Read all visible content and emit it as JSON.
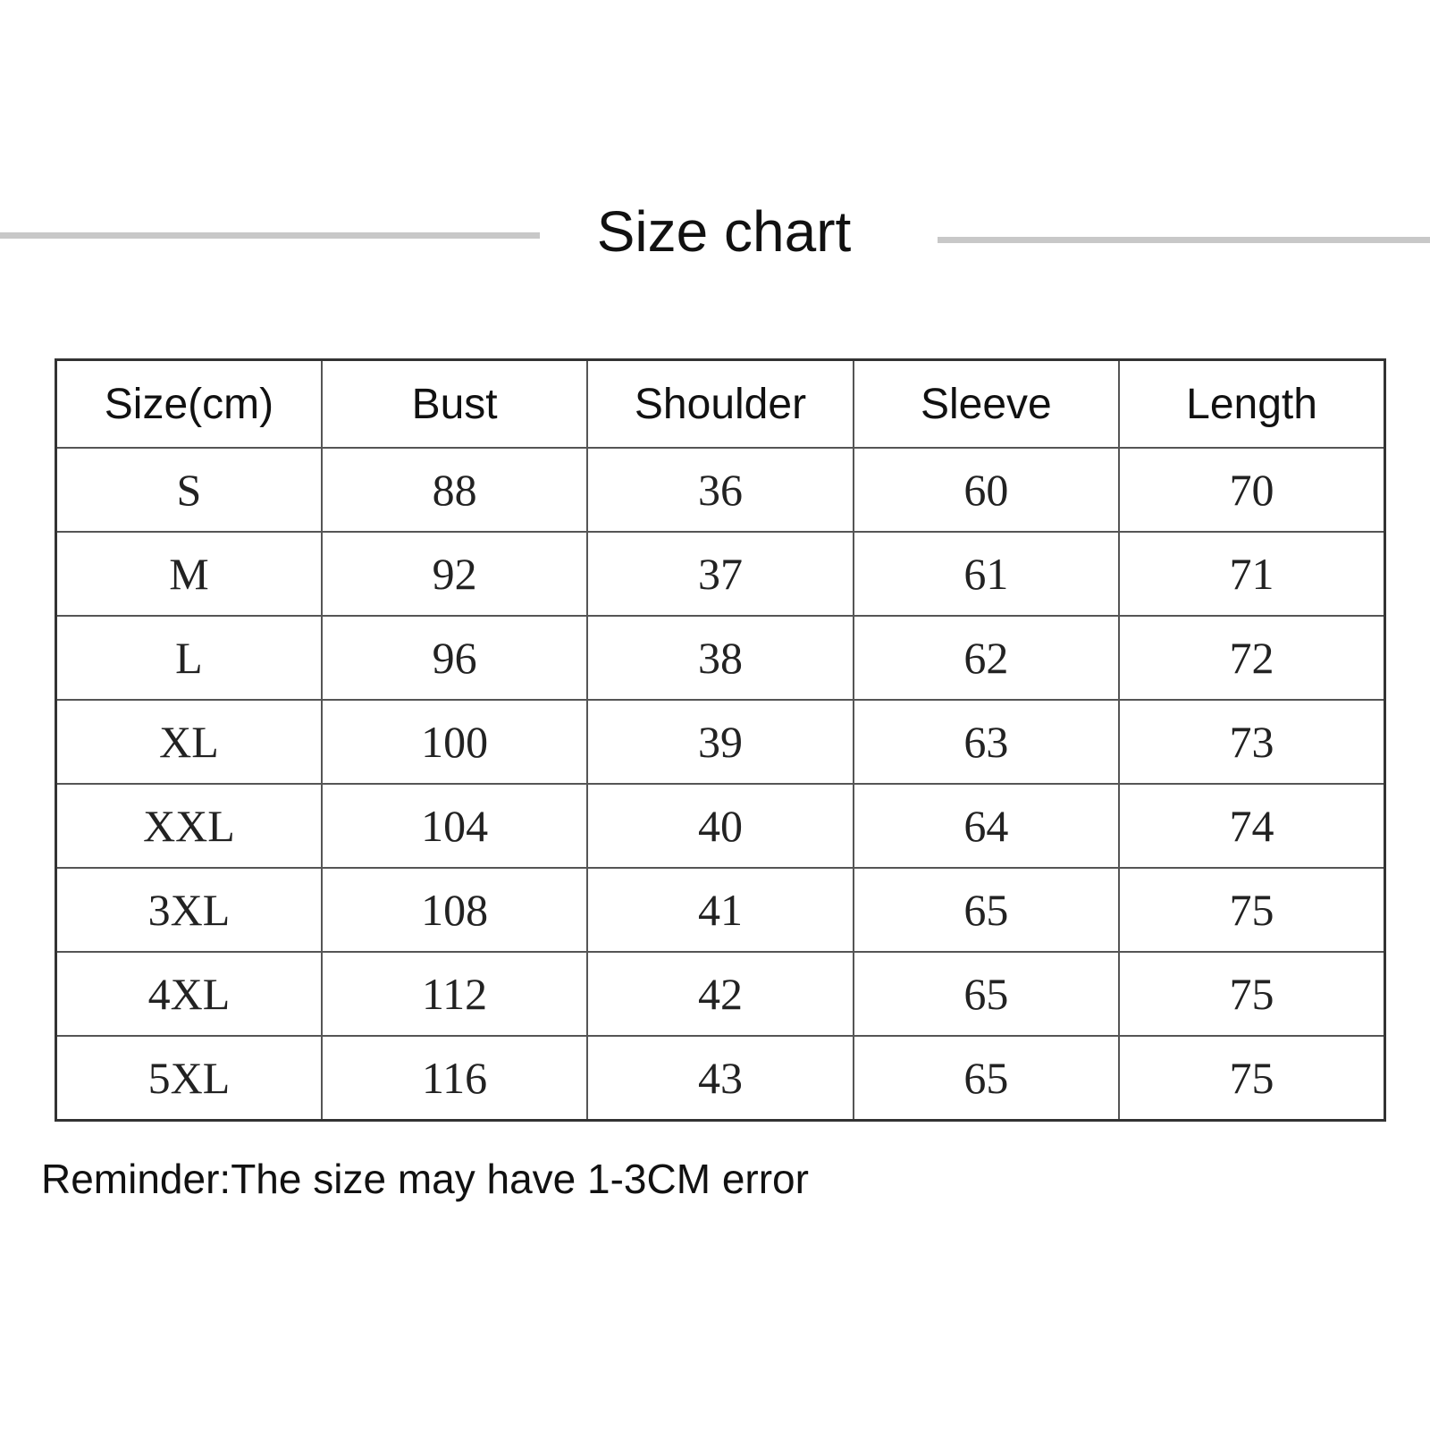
{
  "title": "Size chart",
  "table": {
    "headers": [
      "Size(cm)",
      "Bust",
      "Shoulder",
      "Sleeve",
      "Length"
    ],
    "rows": [
      [
        "S",
        "88",
        "36",
        "60",
        "70"
      ],
      [
        "M",
        "92",
        "37",
        "61",
        "71"
      ],
      [
        "L",
        "96",
        "38",
        "62",
        "72"
      ],
      [
        "XL",
        "100",
        "39",
        "63",
        "73"
      ],
      [
        "XXL",
        "104",
        "40",
        "64",
        "74"
      ],
      [
        "3XL",
        "108",
        "41",
        "65",
        "75"
      ],
      [
        "4XL",
        "112",
        "42",
        "65",
        "75"
      ],
      [
        "5XL",
        "116",
        "43",
        "65",
        "75"
      ]
    ]
  },
  "reminder": "Reminder:The size may have 1-3CM error"
}
